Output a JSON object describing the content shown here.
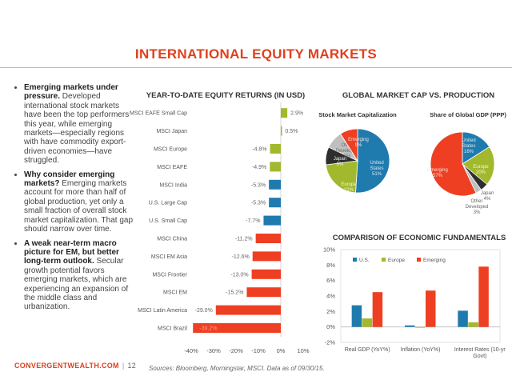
{
  "page": {
    "title": "INTERNATIONAL EQUITY MARKETS",
    "bullets": [
      {
        "bold": "Emerging markets under pressure.",
        "text": " Developed international stock markets have been the top performers this year, while emerging markets—especially regions with have commodity export-driven economies—have struggled."
      },
      {
        "bold": "Why consider emerging markets?",
        "text": " Emerging markets account for more than half of global production, yet only a small fraction of overall stock market capitalization. That gap should narrow over time."
      },
      {
        "bold": "A weak near-term macro picture for EM, but better long-term outlook.",
        "text": " Secular growth potential favors emerging markets, which are experiencing an expansion of the middle class and urbanization."
      }
    ],
    "footer_brand": "CONVERGENTWEALTH.COM",
    "footer_sep": "|",
    "page_number": "12",
    "sources": "Sources: Bloomberg, Morningstar, MSCI. Data as of 09/30/15."
  },
  "chart_data": [
    {
      "type": "bar",
      "orientation": "horizontal",
      "title": "YEAR-TO-DATE EQUITY RETURNS (IN USD)",
      "categories": [
        "MSCI EAFE Small Cap",
        "MSCI Japan",
        "MSCI Europe",
        "MSCI EAFE",
        "MSCI India",
        "U.S. Large Cap",
        "U.S. Small Cap",
        "MSCI China",
        "MSCI EM Asia",
        "MSCI Frontier",
        "MSCI EM",
        "MSCI Latin America",
        "MSCI Brazil"
      ],
      "values": [
        2.9,
        0.5,
        -4.8,
        -4.9,
        -5.3,
        -5.3,
        -7.7,
        -11.2,
        -12.6,
        -13.0,
        -15.2,
        -29.0,
        -39.2
      ],
      "value_labels": [
        "2.9%",
        "0.5%",
        "-4.8%",
        "-4.9%",
        "-5.3%",
        "-5.3%",
        "-7.7%",
        "-11.2%",
        "-12.6%",
        "-13.0%",
        "-15.2%",
        "-29.0%",
        "-39.2%"
      ],
      "colors": [
        "#a2b82d",
        "#a2b82d",
        "#a2b82d",
        "#a2b82d",
        "#1f7bae",
        "#1f7bae",
        "#1f7bae",
        "#ee3f23",
        "#ee3f23",
        "#ee3f23",
        "#ee3f23",
        "#ee3f23",
        "#ee3f23"
      ],
      "xticks": [
        "-40%",
        "-30%",
        "-20%",
        "-10%",
        "0%",
        "10%"
      ],
      "xlim": [
        -40,
        10
      ]
    },
    {
      "type": "pie",
      "group_title": "GLOBAL MARKET CAP VS. PRODUCTION",
      "title": "Stock Market Capitalization",
      "slices": [
        {
          "label": "United States",
          "value": 51,
          "value_label": "51%",
          "color": "#1f7bae"
        },
        {
          "label": "Europe",
          "value": 22,
          "value_label": "22%",
          "color": "#a2b82d"
        },
        {
          "label": "Japan",
          "value": 9,
          "value_label": "9%",
          "color": "#2e2e2e"
        },
        {
          "label": "Other Developed",
          "value": 9,
          "value_label": "9%",
          "color": "#bfbfbf"
        },
        {
          "label": "Emerging",
          "value": 9,
          "value_label": "9%",
          "color": "#ee3f23"
        }
      ]
    },
    {
      "type": "pie",
      "title": "Share of Global GDP (PPP)",
      "slices": [
        {
          "label": "United States",
          "value": 16,
          "value_label": "16%",
          "color": "#1f7bae"
        },
        {
          "label": "Europe",
          "value": 20,
          "value_label": "20%",
          "color": "#a2b82d"
        },
        {
          "label": "Japan",
          "value": 4,
          "value_label": "4%",
          "color": "#2e2e2e"
        },
        {
          "label": "Other Developed",
          "value": 3,
          "value_label": "3%",
          "color": "#bfbfbf"
        },
        {
          "label": "Emerging",
          "value": 57,
          "value_label": "57%",
          "color": "#ee3f23"
        }
      ]
    },
    {
      "type": "bar",
      "title": "COMPARISON OF ECONOMIC FUNDAMENTALS",
      "categories": [
        "Real GDP (YoY%)",
        "Inflation (YoY%)",
        "Interest Rates (10-yr Govt)"
      ],
      "series": [
        {
          "name": "U.S.",
          "values": [
            2.8,
            0.2,
            2.1
          ],
          "color": "#1f7bae"
        },
        {
          "name": "Europe",
          "values": [
            1.1,
            -0.1,
            0.6
          ],
          "color": "#a2b82d"
        },
        {
          "name": "Emerging",
          "values": [
            4.5,
            4.7,
            7.8
          ],
          "color": "#ee3f23"
        }
      ],
      "yticks": [
        "10%",
        "8%",
        "6%",
        "4%",
        "2%",
        "0%",
        "-2%"
      ],
      "ylim": [
        -2,
        10
      ],
      "legend": "top-left"
    }
  ]
}
